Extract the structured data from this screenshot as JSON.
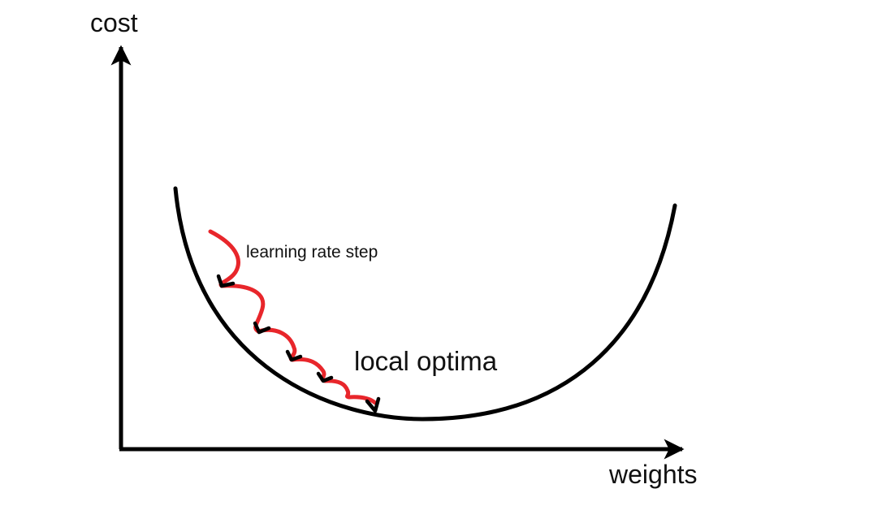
{
  "diagram": {
    "axes": {
      "y_label": "cost",
      "x_label": "weights"
    },
    "annotations": {
      "step_label": "learning rate step",
      "optimum_label": "local optima"
    },
    "descent_steps": 5,
    "colors": {
      "axis": "#000000",
      "curve": "#000000",
      "descent_path": "#e8262b",
      "background": "#ffffff"
    }
  }
}
